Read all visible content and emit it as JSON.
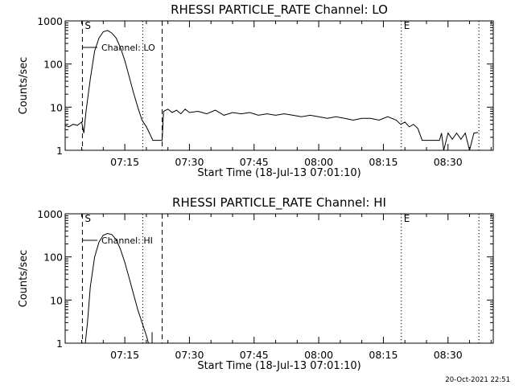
{
  "footer": {
    "timestamp": "20-Oct-2021 22:51"
  },
  "chart_data": [
    {
      "type": "line",
      "title": "RHESSI PARTICLE_RATE Channel: LO",
      "xlabel": "Start Time (18-Jul-13 07:01:10)",
      "ylabel": "Counts/sec",
      "legend": "Channel: LO",
      "legend_position": "top-left",
      "yscale": "log",
      "xlim": [
        "07:01:10",
        "08:40:30"
      ],
      "ylim": [
        1,
        1000
      ],
      "y_ticks": [
        1,
        10,
        100,
        1000
      ],
      "y_tick_labels": [
        "1",
        "10",
        "100",
        "1000"
      ],
      "x_ticks": [
        "07:15",
        "07:30",
        "07:45",
        "08:00",
        "08:15",
        "08:30"
      ],
      "markers": [
        {
          "label": "S",
          "time": "07:05:10",
          "style": "dashed"
        },
        {
          "label": "",
          "time": "07:19:10",
          "style": "dotted"
        },
        {
          "label": "",
          "time": "07:23:40",
          "style": "dashed"
        },
        {
          "label": "E",
          "time": "08:19:10",
          "style": "dotted"
        },
        {
          "label": "",
          "time": "08:37:10",
          "style": "dotted"
        }
      ],
      "series": [
        {
          "x": [
            "07:01:10",
            "07:02:00",
            "07:03:00",
            "07:04:00",
            "07:05:00",
            "07:05:30",
            "07:06:00",
            "07:07:00",
            "07:08:00",
            "07:09:00",
            "07:10:00",
            "07:11:00",
            "07:12:00",
            "07:13:00",
            "07:14:00",
            "07:15:00",
            "07:16:00",
            "07:17:00",
            "07:18:00",
            "07:19:00",
            "07:20:00",
            "07:21:00",
            "07:21:30",
            "07:22:00",
            "07:23:40",
            "07:24:00",
            "07:25:00",
            "07:26:00",
            "07:27:00",
            "07:28:00",
            "07:29:00",
            "07:30:00",
            "07:32:00",
            "07:34:00",
            "07:36:00",
            "07:38:00",
            "07:40:00",
            "07:42:00",
            "07:44:00",
            "07:46:00",
            "07:48:00",
            "07:50:00",
            "07:52:00",
            "07:54:00",
            "07:56:00",
            "07:58:00",
            "08:00:00",
            "08:02:00",
            "08:04:00",
            "08:06:00",
            "08:08:00",
            "08:10:00",
            "08:12:00",
            "08:14:00",
            "08:16:00",
            "08:18:00",
            "08:19:00",
            "08:20:00",
            "08:21:00",
            "08:22:00",
            "08:23:00",
            "08:24:00",
            "08:26:00",
            "08:28:00",
            "08:28:30",
            "08:29:00",
            "08:30:00",
            "08:31:00",
            "08:32:00",
            "08:33:00",
            "08:34:00",
            "08:35:00",
            "08:36:00",
            "08:37:00"
          ],
          "y": [
            3.8,
            3.5,
            4.0,
            3.8,
            4.5,
            2.5,
            8,
            45,
            200,
            400,
            560,
            600,
            520,
            400,
            240,
            120,
            52,
            22,
            10,
            5,
            3.5,
            2.2,
            1.7,
            1.7,
            1.7,
            8,
            9,
            7.5,
            8.5,
            7,
            9,
            7.5,
            8,
            7,
            8.5,
            6.5,
            7.5,
            7,
            7.5,
            6.5,
            7,
            6.5,
            7,
            6.5,
            6,
            6.5,
            6,
            5.5,
            6,
            5.5,
            5,
            5.5,
            5.5,
            5,
            6,
            5,
            4,
            4.5,
            3.5,
            4,
            3.2,
            1.7,
            1.7,
            1.7,
            2.5,
            1.0,
            2.5,
            1.8,
            2.5,
            1.8,
            2.5,
            1.0,
            2.5,
            2.6
          ]
        }
      ]
    },
    {
      "type": "line",
      "title": "RHESSI PARTICLE_RATE Channel: HI",
      "xlabel": "Start Time (18-Jul-13 07:01:10)",
      "ylabel": "Counts/sec",
      "legend": "Channel: HI",
      "legend_position": "top-left",
      "yscale": "log",
      "xlim": [
        "07:01:10",
        "08:40:30"
      ],
      "ylim": [
        1,
        1000
      ],
      "y_ticks": [
        1,
        10,
        100,
        1000
      ],
      "y_tick_labels": [
        "1",
        "10",
        "100",
        "1000"
      ],
      "x_ticks": [
        "07:15",
        "07:30",
        "07:45",
        "08:00",
        "08:15",
        "08:30"
      ],
      "markers": [
        {
          "label": "S",
          "time": "07:05:10",
          "style": "dashed"
        },
        {
          "label": "",
          "time": "07:19:10",
          "style": "dotted"
        },
        {
          "label": "",
          "time": "07:23:40",
          "style": "dashed"
        },
        {
          "label": "E",
          "time": "08:19:10",
          "style": "dotted"
        },
        {
          "label": "",
          "time": "08:37:10",
          "style": "dotted"
        }
      ],
      "series": [
        {
          "x": [
            "07:05:50",
            "07:06:20",
            "07:07:00",
            "07:08:00",
            "07:09:00",
            "07:10:00",
            "07:11:00",
            "07:12:00",
            "07:13:00",
            "07:14:00",
            "07:15:00",
            "07:16:00",
            "07:17:00",
            "07:18:00",
            "07:19:00",
            "07:20:00",
            "07:20:30"
          ],
          "y": [
            1,
            3,
            20,
            100,
            220,
            320,
            350,
            330,
            250,
            150,
            75,
            33,
            14,
            6,
            3,
            1.5,
            1
          ]
        }
      ],
      "spike": {
        "x": "07:21:20",
        "y": 1.8
      }
    }
  ]
}
